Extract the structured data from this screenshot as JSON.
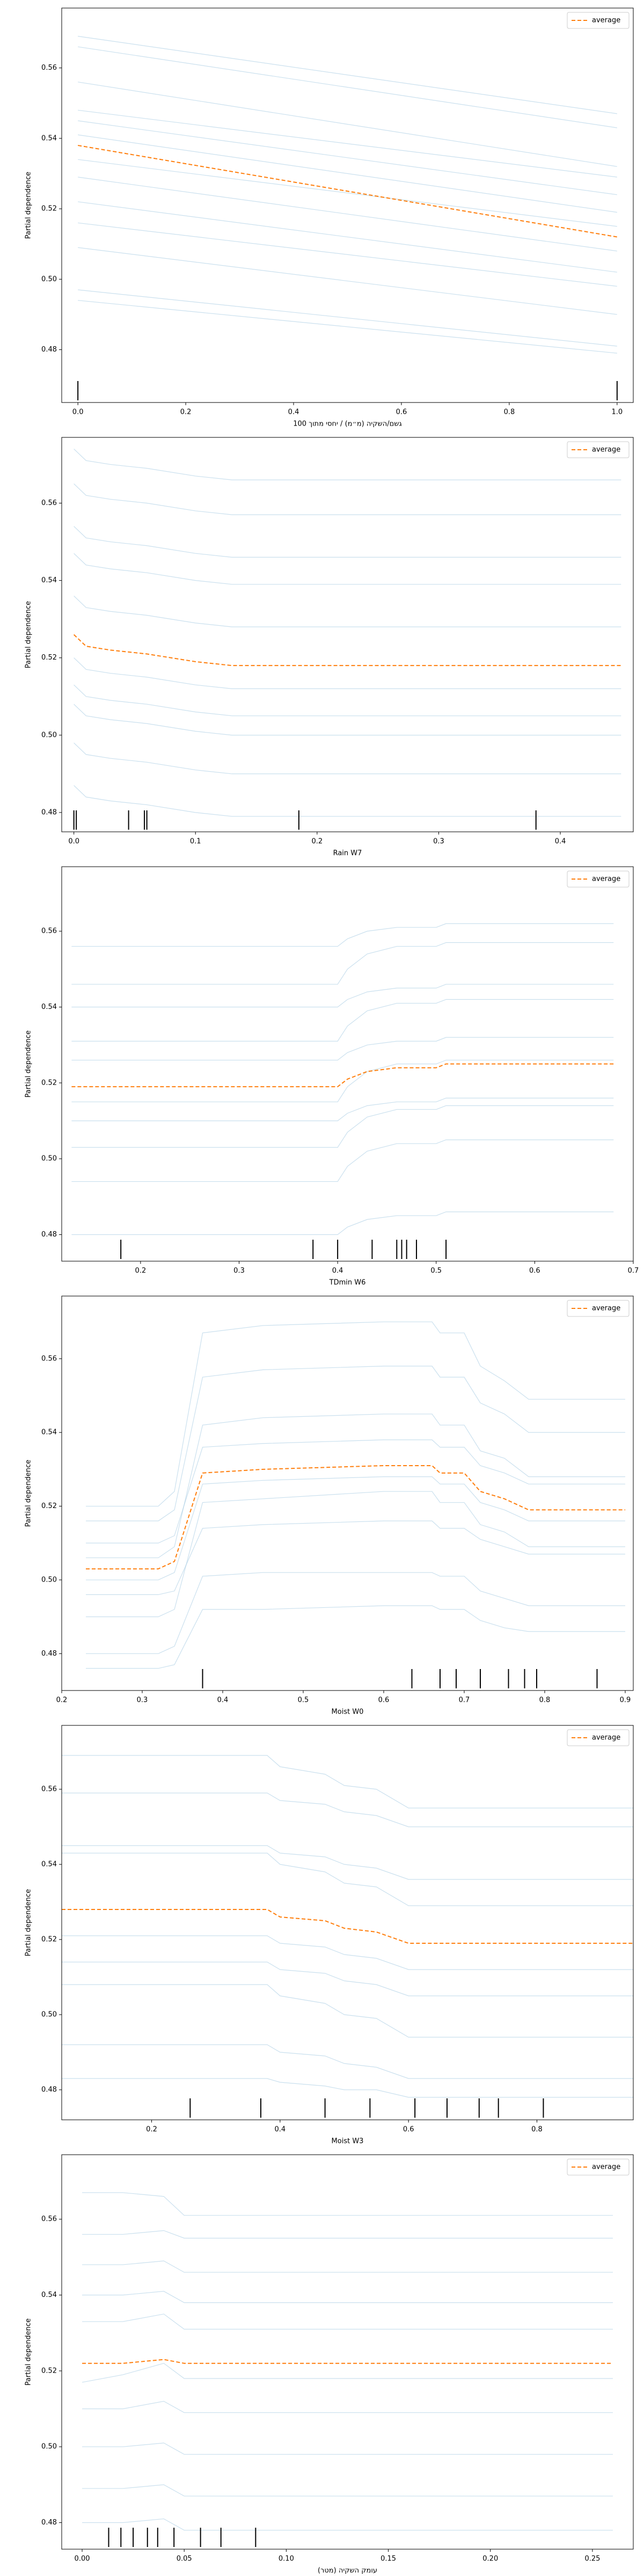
{
  "chart_data": [
    {
      "type": "ice",
      "xlabel": "גשם/השקיה (מ״מ) / יחסי מתוך 100",
      "ylabel": "Partial dependence",
      "x": [
        0,
        1
      ],
      "series": [
        {
          "name": "average",
          "color": "#ff7f0e",
          "values": [
            0.538,
            0.512
          ]
        }
      ],
      "individual_color": "#a6cbe3",
      "individual": [
        [
          0.569,
          0.547
        ],
        [
          0.566,
          0.543
        ],
        [
          0.556,
          0.532
        ],
        [
          0.548,
          0.529
        ],
        [
          0.545,
          0.524
        ],
        [
          0.541,
          0.519
        ],
        [
          0.534,
          0.515
        ],
        [
          0.529,
          0.508
        ],
        [
          0.522,
          0.502
        ],
        [
          0.516,
          0.498
        ],
        [
          0.509,
          0.49
        ],
        [
          0.497,
          0.481
        ],
        [
          0.494,
          0.479
        ]
      ],
      "rug": [
        0,
        1
      ],
      "xlim": [
        -0.03,
        1.03
      ],
      "xticks": [
        {
          "value": 0,
          "label": "0.0"
        },
        0.2,
        0.4,
        0.6,
        0.8,
        {
          "value": 1,
          "label": "1.0"
        }
      ],
      "ylim": [
        0.465,
        0.577
      ],
      "yticks": [
        0.48,
        {
          "value": 0.5,
          "label": "0.50"
        },
        0.52,
        0.54,
        0.56
      ],
      "legend": "upper right"
    },
    {
      "type": "ice",
      "xlabel": "Rain W7",
      "ylabel": "Partial dependence",
      "x": [
        0,
        0.01,
        0.03,
        0.06,
        0.1,
        0.13,
        0.45
      ],
      "series": [
        {
          "name": "average",
          "color": "#ff7f0e",
          "values": [
            0.526,
            0.523,
            0.522,
            0.521,
            0.519,
            0.518,
            0.518
          ]
        }
      ],
      "individual_color": "#a6cbe3",
      "individual": [
        [
          0.574,
          0.571,
          0.57,
          0.569,
          0.567,
          0.566,
          0.566
        ],
        [
          0.565,
          0.562,
          0.561,
          0.56,
          0.558,
          0.557,
          0.557
        ],
        [
          0.554,
          0.551,
          0.55,
          0.549,
          0.547,
          0.546,
          0.546
        ],
        [
          0.547,
          0.544,
          0.543,
          0.542,
          0.54,
          0.539,
          0.539
        ],
        [
          0.536,
          0.533,
          0.532,
          0.531,
          0.529,
          0.528,
          0.528
        ],
        [
          0.52,
          0.517,
          0.516,
          0.515,
          0.513,
          0.512,
          0.512
        ],
        [
          0.513,
          0.51,
          0.509,
          0.508,
          0.506,
          0.505,
          0.505
        ],
        [
          0.508,
          0.505,
          0.504,
          0.503,
          0.501,
          0.5,
          0.5
        ],
        [
          0.498,
          0.495,
          0.494,
          0.493,
          0.491,
          0.49,
          0.49
        ],
        [
          0.487,
          0.484,
          0.483,
          0.482,
          0.48,
          0.479,
          0.479
        ]
      ],
      "rug": [
        0,
        0.002,
        0.045,
        0.058,
        0.06,
        0.185,
        0.38
      ],
      "xlim": [
        -0.01,
        0.46
      ],
      "xticks": [
        {
          "value": 0,
          "label": "0.0"
        },
        0.1,
        0.2,
        0.3,
        0.4
      ],
      "ylim": [
        0.475,
        0.577
      ],
      "yticks": [
        0.48,
        {
          "value": 0.5,
          "label": "0.50"
        },
        0.52,
        0.54,
        0.56
      ],
      "legend": "upper right"
    },
    {
      "type": "ice",
      "xlabel": "TDmin W6",
      "ylabel": "Partial dependence",
      "x": [
        0.13,
        0.4,
        0.41,
        0.43,
        0.46,
        0.5,
        0.51,
        0.68
      ],
      "series": [
        {
          "name": "average",
          "color": "#ff7f0e",
          "values": [
            0.519,
            0.519,
            0.521,
            0.523,
            0.524,
            0.524,
            0.525,
            0.525
          ]
        }
      ],
      "individual_color": "#a6cbe3",
      "individual": [
        [
          0.556,
          0.556,
          0.558,
          0.56,
          0.561,
          0.561,
          0.562,
          0.562
        ],
        [
          0.546,
          0.546,
          0.55,
          0.554,
          0.556,
          0.556,
          0.557,
          0.557
        ],
        [
          0.54,
          0.54,
          0.542,
          0.544,
          0.545,
          0.545,
          0.546,
          0.546
        ],
        [
          0.531,
          0.531,
          0.535,
          0.539,
          0.541,
          0.541,
          0.542,
          0.542
        ],
        [
          0.526,
          0.526,
          0.528,
          0.53,
          0.531,
          0.531,
          0.532,
          0.532
        ],
        [
          0.515,
          0.515,
          0.519,
          0.523,
          0.525,
          0.525,
          0.526,
          0.526
        ],
        [
          0.51,
          0.51,
          0.512,
          0.514,
          0.515,
          0.515,
          0.516,
          0.516
        ],
        [
          0.503,
          0.503,
          0.507,
          0.511,
          0.513,
          0.513,
          0.514,
          0.514
        ],
        [
          0.494,
          0.494,
          0.498,
          0.502,
          0.504,
          0.504,
          0.505,
          0.505
        ],
        [
          0.48,
          0.48,
          0.482,
          0.484,
          0.485,
          0.485,
          0.486,
          0.486
        ]
      ],
      "rug": [
        0.18,
        0.375,
        0.4,
        0.435,
        0.46,
        0.465,
        0.47,
        0.48,
        0.51
      ],
      "xlim": [
        0.12,
        0.7
      ],
      "xticks": [
        0.2,
        0.3,
        0.4,
        0.5,
        0.6,
        0.7
      ],
      "ylim": [
        0.473,
        0.577
      ],
      "yticks": [
        0.48,
        {
          "value": 0.5,
          "label": "0.50"
        },
        0.52,
        0.54,
        0.56
      ],
      "legend": "upper right"
    },
    {
      "type": "ice",
      "xlabel": "Moist W0",
      "ylabel": "Partial dependence",
      "x": [
        0.23,
        0.32,
        0.34,
        0.375,
        0.45,
        0.6,
        0.66,
        0.67,
        0.7,
        0.72,
        0.75,
        0.78,
        0.9
      ],
      "series": [
        {
          "name": "average",
          "color": "#ff7f0e",
          "values": [
            0.503,
            0.503,
            0.505,
            0.529,
            0.53,
            0.531,
            0.531,
            0.529,
            0.529,
            0.524,
            0.522,
            0.519,
            0.519
          ]
        }
      ],
      "individual_color": "#a6cbe3",
      "individual": [
        [
          0.52,
          0.52,
          0.524,
          0.567,
          0.569,
          0.57,
          0.57,
          0.567,
          0.567,
          0.558,
          0.554,
          0.549,
          0.549
        ],
        [
          0.516,
          0.516,
          0.519,
          0.555,
          0.557,
          0.558,
          0.558,
          0.555,
          0.555,
          0.548,
          0.545,
          0.54,
          0.54
        ],
        [
          0.51,
          0.51,
          0.512,
          0.536,
          0.537,
          0.538,
          0.538,
          0.536,
          0.536,
          0.531,
          0.529,
          0.526,
          0.526
        ],
        [
          0.506,
          0.506,
          0.509,
          0.542,
          0.544,
          0.545,
          0.545,
          0.542,
          0.542,
          0.535,
          0.533,
          0.528,
          0.528
        ],
        [
          0.5,
          0.5,
          0.502,
          0.526,
          0.527,
          0.528,
          0.528,
          0.526,
          0.526,
          0.521,
          0.519,
          0.516,
          0.516
        ],
        [
          0.496,
          0.496,
          0.497,
          0.514,
          0.515,
          0.516,
          0.516,
          0.514,
          0.514,
          0.511,
          0.509,
          0.507,
          0.507
        ],
        [
          0.49,
          0.49,
          0.492,
          0.521,
          0.522,
          0.524,
          0.524,
          0.521,
          0.521,
          0.515,
          0.513,
          0.509,
          0.509
        ],
        [
          0.48,
          0.48,
          0.482,
          0.501,
          0.502,
          0.502,
          0.502,
          0.501,
          0.501,
          0.497,
          0.495,
          0.493,
          0.493
        ],
        [
          0.476,
          0.476,
          0.477,
          0.492,
          0.492,
          0.493,
          0.493,
          0.492,
          0.492,
          0.489,
          0.487,
          0.486,
          0.486
        ]
      ],
      "rug": [
        0.375,
        0.635,
        0.67,
        0.69,
        0.72,
        0.755,
        0.775,
        0.79,
        0.865
      ],
      "xlim": [
        0.2,
        0.91
      ],
      "xticks": [
        0.2,
        0.3,
        0.4,
        0.5,
        0.6,
        0.7,
        0.8,
        0.9
      ],
      "ylim": [
        0.47,
        0.577
      ],
      "yticks": [
        0.48,
        {
          "value": 0.5,
          "label": "0.50"
        },
        0.52,
        0.54,
        0.56
      ],
      "legend": "upper right"
    },
    {
      "type": "ice",
      "xlabel": "Moist W3",
      "ylabel": "Partial dependence",
      "x": [
        0.06,
        0.38,
        0.4,
        0.47,
        0.5,
        0.55,
        0.6,
        0.95
      ],
      "series": [
        {
          "name": "average",
          "color": "#ff7f0e",
          "values": [
            0.528,
            0.528,
            0.526,
            0.525,
            0.523,
            0.522,
            0.519,
            0.519
          ]
        }
      ],
      "individual_color": "#a6cbe3",
      "individual": [
        [
          0.569,
          0.569,
          0.566,
          0.564,
          0.561,
          0.56,
          0.555,
          0.555
        ],
        [
          0.559,
          0.559,
          0.557,
          0.556,
          0.554,
          0.553,
          0.55,
          0.55
        ],
        [
          0.545,
          0.545,
          0.543,
          0.542,
          0.54,
          0.539,
          0.536,
          0.536
        ],
        [
          0.543,
          0.543,
          0.54,
          0.538,
          0.535,
          0.534,
          0.529,
          0.529
        ],
        [
          0.521,
          0.521,
          0.519,
          0.518,
          0.516,
          0.515,
          0.512,
          0.512
        ],
        [
          0.514,
          0.514,
          0.512,
          0.511,
          0.509,
          0.508,
          0.505,
          0.505
        ],
        [
          0.508,
          0.508,
          0.505,
          0.503,
          0.5,
          0.499,
          0.494,
          0.494
        ],
        [
          0.492,
          0.492,
          0.49,
          0.489,
          0.487,
          0.486,
          0.483,
          0.483
        ],
        [
          0.483,
          0.483,
          0.482,
          0.481,
          0.48,
          0.48,
          0.478,
          0.478
        ]
      ],
      "rug": [
        0.26,
        0.37,
        0.47,
        0.54,
        0.61,
        0.66,
        0.71,
        0.74,
        0.81
      ],
      "xlim": [
        0.06,
        0.95
      ],
      "xticks": [
        0.2,
        0.4,
        0.6,
        0.8
      ],
      "ylim": [
        0.472,
        0.577
      ],
      "yticks": [
        0.48,
        {
          "value": 0.5,
          "label": "0.50"
        },
        0.52,
        0.54,
        0.56
      ],
      "legend": "upper right"
    },
    {
      "type": "ice",
      "xlabel": "עומק השקיה (מטר)",
      "ylabel": "Partial dependence",
      "x": [
        0,
        0.02,
        0.04,
        0.05,
        0.26
      ],
      "series": [
        {
          "name": "average",
          "color": "#ff7f0e",
          "values": [
            0.522,
            0.522,
            0.523,
            0.522,
            0.522
          ]
        }
      ],
      "individual_color": "#a6cbe3",
      "individual": [
        [
          0.567,
          0.567,
          0.566,
          0.561,
          0.561
        ],
        [
          0.556,
          0.556,
          0.557,
          0.555,
          0.555
        ],
        [
          0.548,
          0.548,
          0.549,
          0.546,
          0.546
        ],
        [
          0.54,
          0.54,
          0.541,
          0.538,
          0.538
        ],
        [
          0.533,
          0.533,
          0.535,
          0.531,
          0.531
        ],
        [
          0.517,
          0.519,
          0.522,
          0.518,
          0.518
        ],
        [
          0.51,
          0.51,
          0.512,
          0.509,
          0.509
        ],
        [
          0.5,
          0.5,
          0.501,
          0.498,
          0.498
        ],
        [
          0.489,
          0.489,
          0.49,
          0.487,
          0.487
        ],
        [
          0.48,
          0.48,
          0.481,
          0.478,
          0.478
        ]
      ],
      "rug": [
        0.013,
        0.019,
        0.025,
        0.032,
        0.037,
        0.045,
        0.058,
        0.068,
        0.085
      ],
      "xlim": [
        -0.01,
        0.27
      ],
      "xticks": [
        {
          "value": 0,
          "label": "0.00"
        },
        0.05,
        {
          "value": 0.1,
          "label": "0.10"
        },
        0.15,
        {
          "value": 0.2,
          "label": "0.20"
        },
        0.25
      ],
      "ylim": [
        0.473,
        0.577
      ],
      "yticks": [
        0.48,
        {
          "value": 0.5,
          "label": "0.50"
        },
        0.52,
        0.54,
        0.56
      ],
      "legend": "upper right"
    }
  ]
}
